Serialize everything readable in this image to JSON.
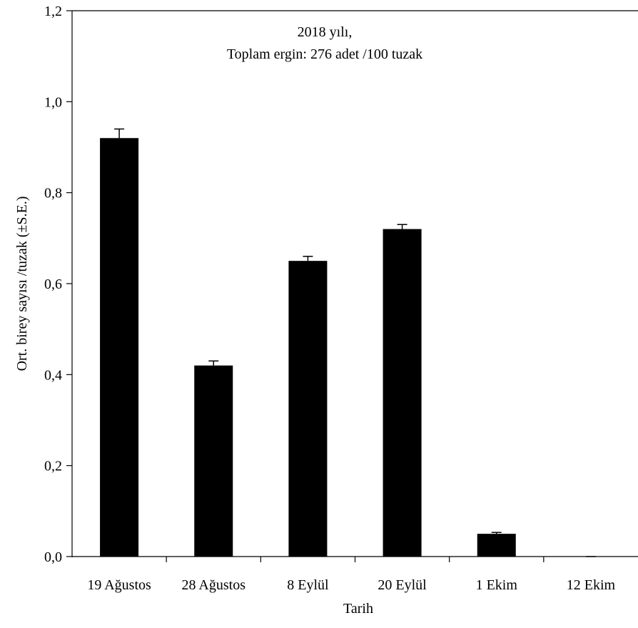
{
  "chart_data": {
    "type": "bar",
    "title_line1": "2018 yılı,",
    "title_line2": "Toplam ergin: 276 adet /100 tuzak",
    "xlabel": "Tarih",
    "ylabel": "Ort. birey sayısı /tuzak (±S.E.)",
    "categories": [
      "19 Ağustos",
      "28 Ağustos",
      "8 Eylül",
      "20 Eylül",
      "1 Ekim",
      "12 Ekim"
    ],
    "values": [
      0.92,
      0.42,
      0.65,
      0.72,
      0.05,
      0.0
    ],
    "errors": [
      0.02,
      0.01,
      0.01,
      0.01,
      0.003,
      0.0
    ],
    "ylim": [
      0,
      1.2
    ],
    "yticks": [
      0.0,
      0.2,
      0.4,
      0.6,
      0.8,
      1.0,
      1.2
    ],
    "ytick_labels": [
      "0,0",
      "0,2",
      "0,4",
      "0,6",
      "0,8",
      "1,0",
      "1,2"
    ],
    "grid": false,
    "legend": "none",
    "bar_color": "#000000"
  }
}
